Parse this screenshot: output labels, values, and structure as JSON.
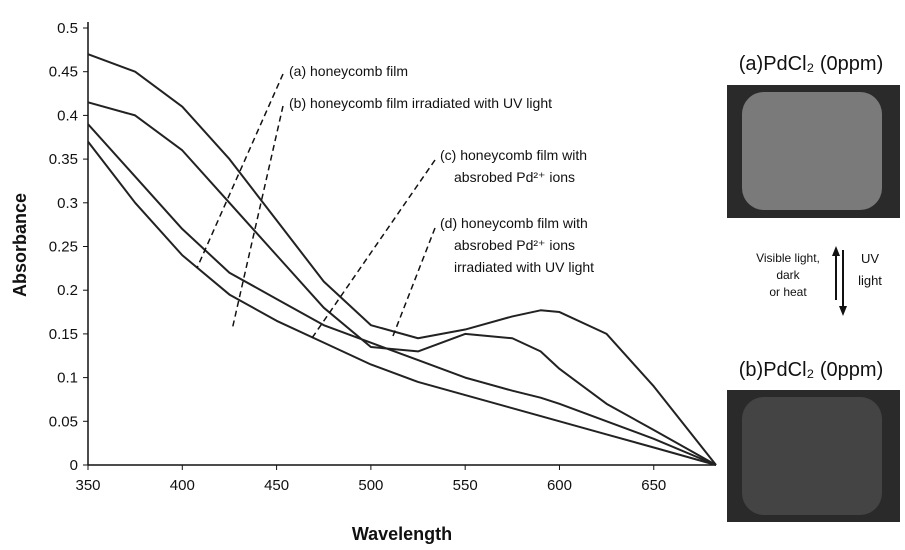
{
  "chart_data": {
    "type": "line",
    "x_label": "Wavelength",
    "y_label": "Absorbance",
    "xlim": [
      350,
      683
    ],
    "xticks": [
      350,
      400,
      450,
      500,
      550,
      600,
      650
    ],
    "ylim": [
      0,
      0.5
    ],
    "yticks": [
      0,
      0.05,
      0.1,
      0.15,
      0.2,
      0.25,
      0.3,
      0.35,
      0.4,
      0.45,
      0.5
    ],
    "x": [
      350,
      375,
      400,
      425,
      450,
      475,
      500,
      525,
      550,
      575,
      590,
      600,
      625,
      650,
      683
    ],
    "series": [
      {
        "color": "#222222",
        "values": [
          0.47,
          0.45,
          0.41,
          0.35,
          0.28,
          0.21,
          0.16,
          0.145,
          0.155,
          0.17,
          0.177,
          0.175,
          0.15,
          0.09,
          0
        ]
      },
      {
        "color": "#222222",
        "values": [
          0.415,
          0.4,
          0.36,
          0.3,
          0.24,
          0.18,
          0.135,
          0.13,
          0.15,
          0.145,
          0.13,
          0.11,
          0.07,
          0.04,
          0
        ]
      },
      {
        "color": "#222222",
        "values": [
          0.39,
          0.33,
          0.27,
          0.22,
          0.19,
          0.16,
          0.14,
          0.12,
          0.1,
          0.085,
          0.077,
          0.07,
          0.05,
          0.03,
          0
        ]
      },
      {
        "color": "#222222",
        "values": [
          0.37,
          0.3,
          0.24,
          0.195,
          0.165,
          0.14,
          0.115,
          0.095,
          0.08,
          0.065,
          0.056,
          0.05,
          0.035,
          0.02,
          0
        ]
      }
    ],
    "annotations": [
      {
        "lines": [
          "(a) honeycomb film"
        ]
      },
      {
        "lines": [
          "(b) honeycomb film irradiated with UV light"
        ]
      },
      {
        "lines": [
          "(c) honeycomb film with",
          "absrobed Pd²⁺ ions"
        ]
      },
      {
        "lines": [
          "(d) honeycomb film with",
          "absrobed Pd²⁺ ions",
          "irradiated with UV light"
        ]
      }
    ]
  },
  "side_panel": {
    "top_title": "(a)PdCl₂ (0ppm)",
    "bottom_title": "(b)PdCl₂ (0ppm)",
    "left_arrow_text": [
      "Visible light,",
      "dark",
      "or heat"
    ],
    "right_arrow_text": [
      "UV",
      "light"
    ]
  }
}
